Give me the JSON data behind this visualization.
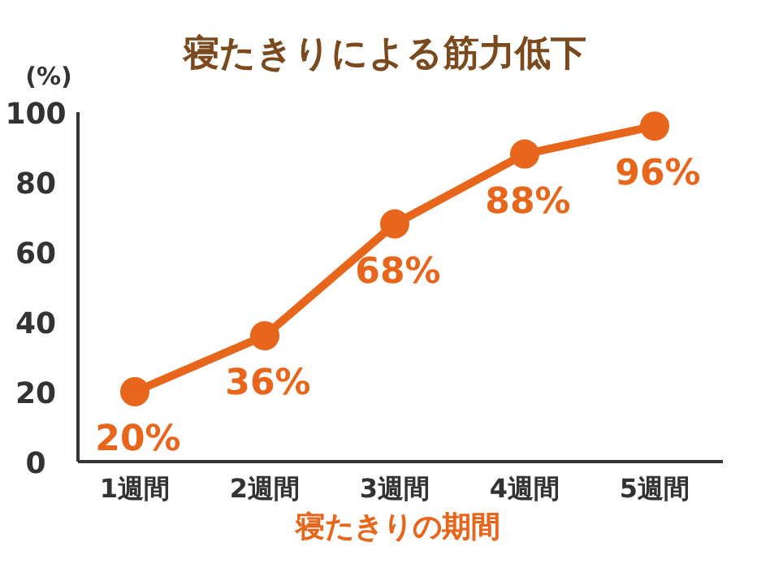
{
  "chart_data": {
    "type": "line",
    "title": "寝たきりによる筋力低下",
    "xlabel": "寝たきりの期間",
    "ylabel": "(%)",
    "categories": [
      "1週間",
      "2週間",
      "3週間",
      "4週間",
      "5週間"
    ],
    "series": [
      {
        "color": "#e8661c",
        "values": [
          20,
          36,
          68,
          88,
          96
        ],
        "value_labels": [
          "20%",
          "36%",
          "68%",
          "88%",
          "96%"
        ]
      }
    ],
    "ylim": [
      0,
      100
    ],
    "yticks": [
      0,
      20,
      40,
      60,
      80,
      100
    ],
    "marker": "circle",
    "line_style": "solid"
  }
}
